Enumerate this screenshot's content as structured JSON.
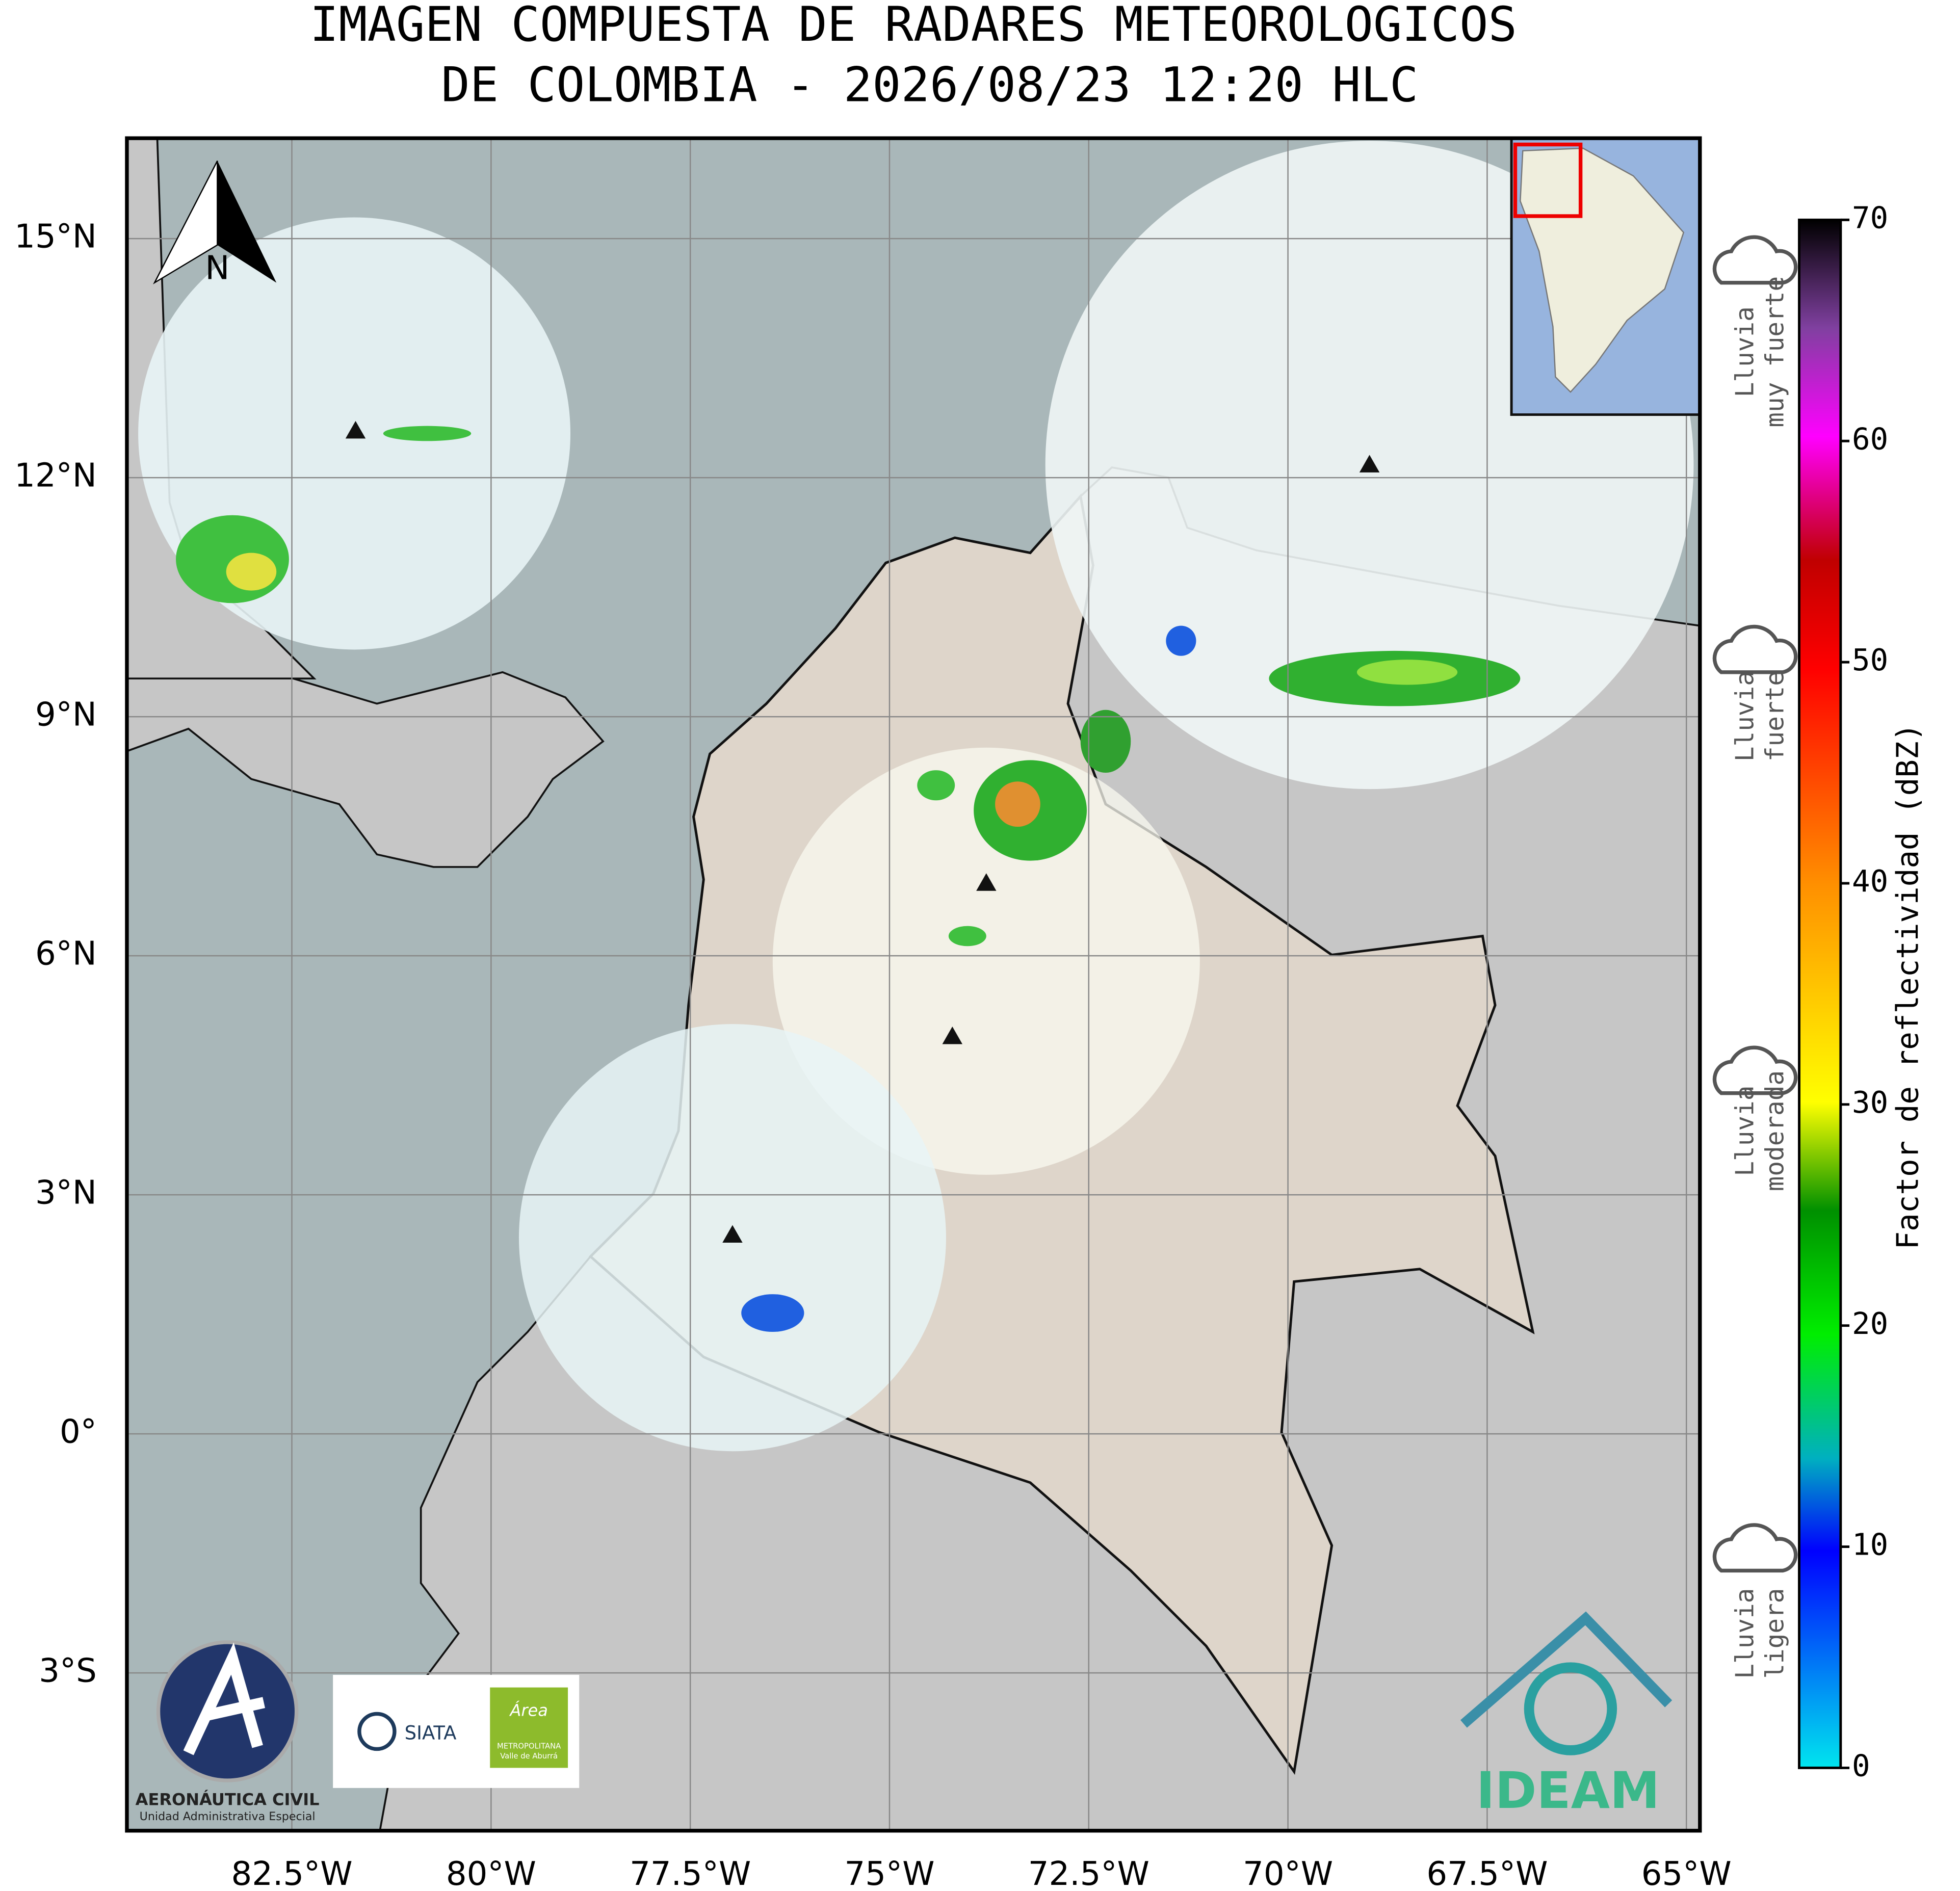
{
  "chart_data": {
    "type": "map",
    "title": [
      "IMAGEN COMPUESTA DE RADARES METEOROLOGICOS",
      "DE COLOMBIA - 2026/08/23 12:20 HLC"
    ],
    "xlim": [
      -84.57,
      -64.83
    ],
    "ylim": [
      -4.98,
      16.26
    ],
    "xticks": [
      {
        "value": -82.5,
        "label": "82.5°W"
      },
      {
        "value": -80,
        "label": "80°W"
      },
      {
        "value": -77.5,
        "label": "77.5°W"
      },
      {
        "value": -75,
        "label": "75°W"
      },
      {
        "value": -72.5,
        "label": "72.5°W"
      },
      {
        "value": -70,
        "label": "70°W"
      },
      {
        "value": -67.5,
        "label": "67.5°W"
      },
      {
        "value": -65,
        "label": "65°W"
      }
    ],
    "yticks": [
      {
        "value": 15,
        "label": "15°N"
      },
      {
        "value": 12,
        "label": "12°N"
      },
      {
        "value": 9,
        "label": "9°N"
      },
      {
        "value": 6,
        "label": "6°N"
      },
      {
        "value": 3,
        "label": "3°N"
      },
      {
        "value": 0,
        "label": "0°"
      },
      {
        "value": -3,
        "label": "3°S"
      }
    ],
    "grid": true,
    "colorbar": {
      "label": "Factor de reflectividad (dBZ)",
      "lim": [
        0,
        70
      ],
      "ticks": [
        0,
        10,
        20,
        30,
        40,
        50,
        60,
        70
      ]
    },
    "rain_legend": [
      [
        "Lluvia",
        "muy fuerte"
      ],
      [
        "Lluvia",
        "fuerte"
      ],
      [
        "Lluvia",
        "moderada"
      ],
      [
        "Lluvia",
        "ligera"
      ]
    ],
    "north_label": "N"
  },
  "logos": {
    "aerocivil": [
      "AERONÁUTICA CIVIL",
      "Unidad Administrativa Especial"
    ],
    "siata": "SIATA",
    "area": [
      "Área",
      "METROPOLITANA",
      "Valle de Aburrá"
    ],
    "ideam": "IDEAM"
  }
}
